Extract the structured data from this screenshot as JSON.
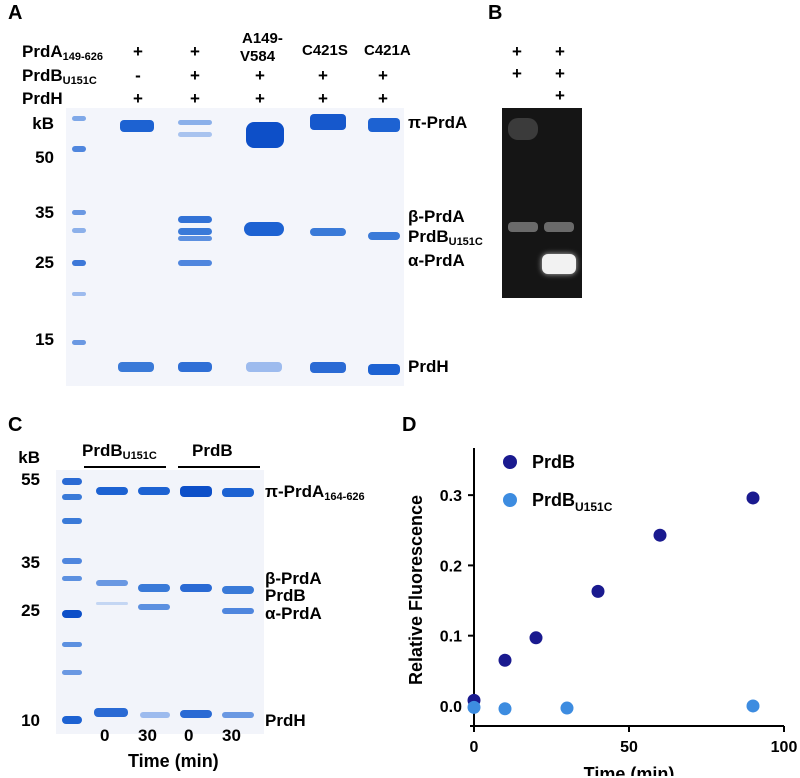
{
  "panel_a": {
    "letter": "A",
    "rows": [
      {
        "label": "PrdA",
        "sub": "149-626",
        "signs": [
          "+",
          "+",
          "",
          "",
          ""
        ]
      },
      {
        "label": "PrdB",
        "sub": "U151C",
        "signs": [
          "-",
          "+",
          "+",
          "+",
          "+"
        ]
      },
      {
        "label": "PrdH",
        "sub": "",
        "signs": [
          "+",
          "+",
          "+",
          "+",
          "+"
        ]
      }
    ],
    "lane_headers": [
      "A149-",
      "V584",
      "C421S",
      "C421A"
    ],
    "ladder_title": "kB",
    "mw_markers": [
      "50",
      "35",
      "25",
      "15"
    ],
    "band_labels": {
      "pi": "π-PrdA",
      "beta": "β-PrdA",
      "prdb": "PrdB",
      "prdb_sub": "U151C",
      "alpha": "α-PrdA",
      "prdh": "PrdH"
    }
  },
  "panel_b": {
    "letter": "B",
    "row1": [
      "+",
      "+"
    ],
    "row2": [
      "+",
      "+"
    ],
    "row3": [
      "",
      "+"
    ]
  },
  "panel_c": {
    "letter": "C",
    "ladder_title": "kB",
    "mw_markers": [
      "55",
      "35",
      "25",
      "10"
    ],
    "group1": "PrdB",
    "group1_sub": "U151C",
    "group2": "PrdB",
    "times": [
      "0",
      "30",
      "0",
      "30"
    ],
    "xlabel": "Time (min)",
    "band_labels": {
      "pi": "π-PrdA",
      "pi_sub": "164-626",
      "beta": "β-PrdA",
      "prdb": "PrdB",
      "alpha": "α-PrdA",
      "prdh": "PrdH"
    }
  },
  "panel_d": {
    "letter": "D"
  },
  "chart_data": {
    "type": "scatter",
    "title": "",
    "xlabel": "Time (min)",
    "ylabel": "Relative Fluorescence",
    "xlim": [
      0,
      100
    ],
    "ylim": [
      -0.02,
      0.35
    ],
    "xticks": [
      "0",
      "50",
      "100"
    ],
    "yticks": [
      "0.0",
      "0.1",
      "0.2",
      "0.3"
    ],
    "legend_position": "top-left",
    "series": [
      {
        "name": "PrdB",
        "name_sub": "",
        "color": "#1a1a8f",
        "x": [
          0,
          10,
          20,
          40,
          60,
          90
        ],
        "y": [
          0.008,
          0.065,
          0.097,
          0.163,
          0.243,
          0.296
        ]
      },
      {
        "name": "PrdB",
        "name_sub": "U151C",
        "color": "#3d8ce0",
        "x": [
          0,
          10,
          30,
          90
        ],
        "y": [
          -0.002,
          -0.004,
          -0.003,
          0.0
        ]
      }
    ]
  }
}
